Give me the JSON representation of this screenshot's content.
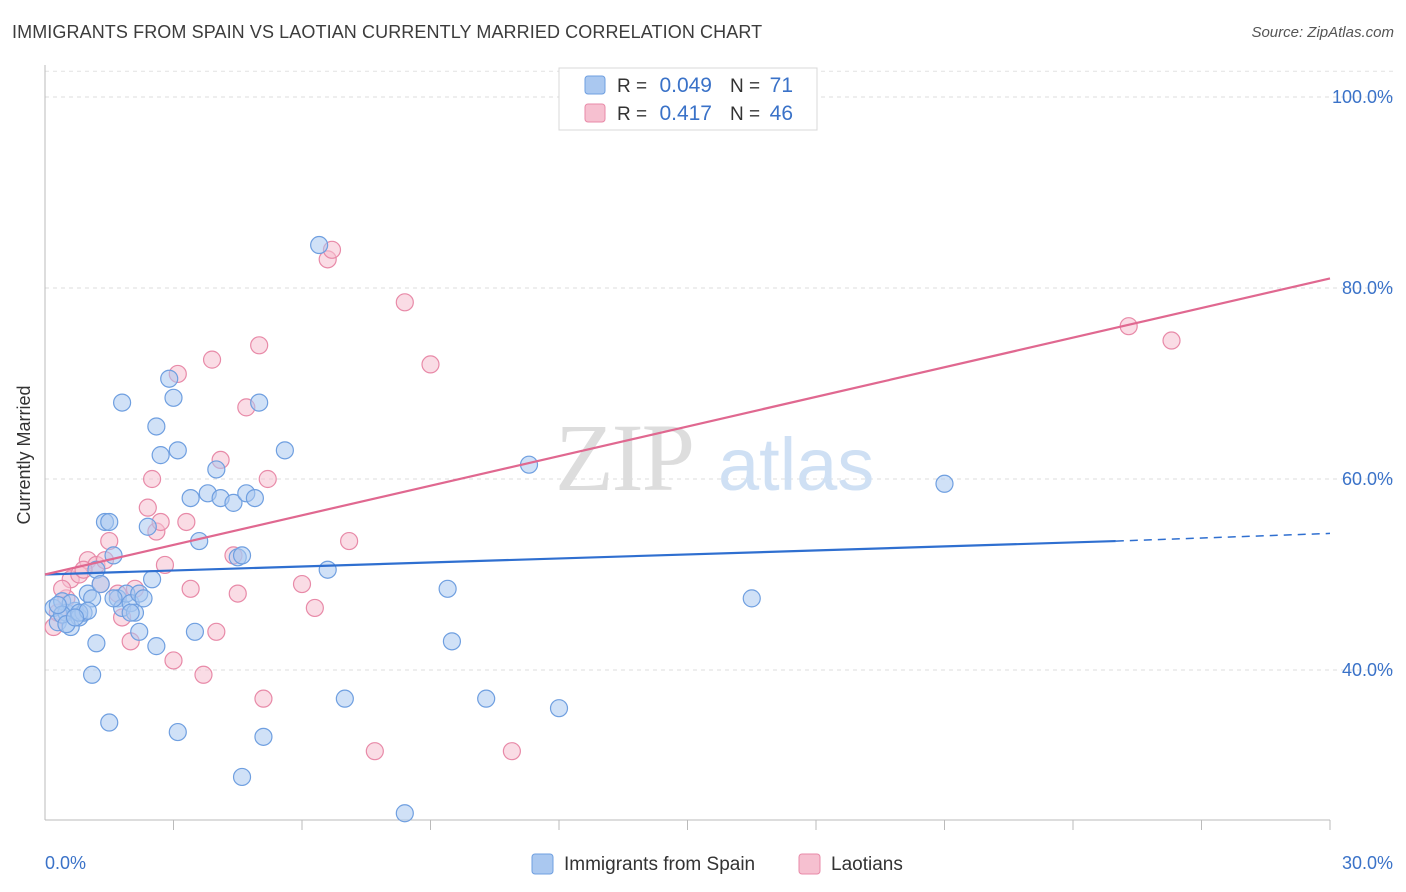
{
  "chart_data": {
    "type": "scatter",
    "title": "IMMIGRANTS FROM SPAIN VS LAOTIAN CURRENTLY MARRIED CORRELATION CHART",
    "source": "Source: ZipAtlas.com",
    "ylabel": "Currently Married",
    "xlabel": "",
    "x_ticks": [
      "0.0%",
      "30.0%"
    ],
    "y_ticks": [
      "100.0%",
      "80.0%",
      "60.0%",
      "40.0%"
    ],
    "y_tick_values": [
      100,
      80,
      60,
      40
    ],
    "xlim": [
      0,
      30
    ],
    "ylim": [
      22,
      102
    ],
    "watermark": {
      "zip": "ZIP",
      "atlas": "atlas"
    },
    "legend_stats": [
      {
        "r_label": "R =",
        "r_value": "0.049",
        "n_label": "N =",
        "n_value": "71"
      },
      {
        "r_label": "R =",
        "r_value": "0.417",
        "n_label": "N =",
        "n_value": "46"
      }
    ],
    "colors": {
      "blue_fill": "#aac8f0",
      "blue_stroke": "#6f9fe0",
      "blue_line": "#2f6fd0",
      "pink_fill": "#f6c0d0",
      "pink_stroke": "#e88aa8",
      "pink_line": "#e06890",
      "tick_label": "#3a72c8"
    },
    "series": [
      {
        "name": "Immigrants from Spain",
        "trend": {
          "x0": 0,
          "y0": 50.0,
          "x1": 25.0,
          "y1": 53.5,
          "dashed_to_x": 30,
          "dashed_to_y": 54.3
        },
        "points": [
          [
            0.2,
            46.5
          ],
          [
            0.3,
            45.0
          ],
          [
            0.4,
            47.2
          ],
          [
            0.5,
            46.0
          ],
          [
            0.6,
            44.5
          ],
          [
            0.7,
            46.2
          ],
          [
            0.8,
            45.5
          ],
          [
            0.9,
            46.0
          ],
          [
            1.0,
            48.0
          ],
          [
            1.1,
            47.5
          ],
          [
            1.2,
            50.5
          ],
          [
            1.3,
            49.0
          ],
          [
            1.4,
            55.5
          ],
          [
            1.5,
            55.5
          ],
          [
            1.6,
            52.0
          ],
          [
            1.7,
            47.5
          ],
          [
            1.8,
            46.5
          ],
          [
            1.9,
            48.0
          ],
          [
            2.0,
            47.0
          ],
          [
            2.1,
            46.0
          ],
          [
            2.2,
            48.0
          ],
          [
            2.3,
            47.5
          ],
          [
            2.4,
            55.0
          ],
          [
            2.5,
            49.5
          ],
          [
            2.6,
            65.5
          ],
          [
            2.7,
            62.5
          ],
          [
            2.9,
            70.5
          ],
          [
            3.0,
            68.5
          ],
          [
            3.1,
            63.0
          ],
          [
            3.4,
            58.0
          ],
          [
            3.5,
            44.0
          ],
          [
            3.6,
            53.5
          ],
          [
            3.8,
            58.5
          ],
          [
            4.0,
            61.0
          ],
          [
            4.1,
            58.0
          ],
          [
            4.4,
            57.5
          ],
          [
            4.5,
            51.8
          ],
          [
            4.6,
            52.0
          ],
          [
            4.7,
            58.5
          ],
          [
            4.9,
            58.0
          ],
          [
            5.0,
            68.0
          ],
          [
            5.1,
            33.0
          ],
          [
            5.6,
            63.0
          ],
          [
            6.4,
            84.5
          ],
          [
            6.6,
            50.5
          ],
          [
            7.0,
            37.0
          ],
          [
            8.4,
            25.0
          ],
          [
            9.4,
            48.5
          ],
          [
            9.5,
            43.0
          ],
          [
            10.3,
            37.0
          ],
          [
            11.3,
            61.5
          ],
          [
            12.0,
            36.0
          ],
          [
            16.5,
            47.5
          ],
          [
            21.0,
            59.5
          ],
          [
            1.8,
            68.0
          ],
          [
            2.6,
            42.5
          ],
          [
            1.1,
            39.5
          ],
          [
            1.5,
            34.5
          ],
          [
            3.1,
            33.5
          ],
          [
            4.6,
            28.8
          ],
          [
            0.6,
            47.0
          ],
          [
            0.8,
            46.0
          ],
          [
            1.0,
            46.2
          ],
          [
            0.4,
            45.8
          ],
          [
            0.5,
            44.8
          ],
          [
            0.7,
            45.5
          ],
          [
            1.2,
            42.8
          ],
          [
            2.2,
            44.0
          ],
          [
            2.0,
            46.0
          ],
          [
            1.6,
            47.5
          ],
          [
            0.3,
            46.8
          ]
        ]
      },
      {
        "name": "Laotians",
        "trend": {
          "x0": 0,
          "y0": 50.0,
          "x1": 30,
          "y1": 81.0
        },
        "points": [
          [
            0.2,
            44.5
          ],
          [
            0.3,
            46.0
          ],
          [
            0.5,
            47.5
          ],
          [
            0.6,
            49.5
          ],
          [
            0.8,
            50.0
          ],
          [
            1.0,
            51.5
          ],
          [
            1.2,
            51.0
          ],
          [
            1.3,
            49.0
          ],
          [
            1.5,
            53.5
          ],
          [
            1.7,
            48.0
          ],
          [
            1.8,
            45.5
          ],
          [
            2.0,
            43.0
          ],
          [
            2.1,
            48.5
          ],
          [
            2.4,
            57.0
          ],
          [
            2.5,
            60.0
          ],
          [
            2.6,
            54.5
          ],
          [
            2.7,
            55.5
          ],
          [
            2.8,
            51.0
          ],
          [
            3.0,
            41.0
          ],
          [
            3.1,
            71.0
          ],
          [
            3.3,
            55.5
          ],
          [
            3.4,
            48.5
          ],
          [
            3.7,
            39.5
          ],
          [
            3.9,
            72.5
          ],
          [
            4.0,
            44.0
          ],
          [
            4.1,
            62.0
          ],
          [
            4.4,
            52.0
          ],
          [
            4.5,
            48.0
          ],
          [
            4.7,
            67.5
          ],
          [
            5.0,
            74.0
          ],
          [
            5.1,
            37.0
          ],
          [
            5.2,
            60.0
          ],
          [
            6.0,
            49.0
          ],
          [
            6.3,
            46.5
          ],
          [
            6.6,
            83.0
          ],
          [
            6.7,
            84.0
          ],
          [
            7.1,
            53.5
          ],
          [
            7.7,
            31.5
          ],
          [
            8.4,
            78.5
          ],
          [
            9.0,
            72.0
          ],
          [
            10.9,
            31.5
          ],
          [
            25.3,
            76.0
          ],
          [
            26.3,
            74.5
          ],
          [
            1.4,
            51.5
          ],
          [
            0.9,
            50.5
          ],
          [
            0.4,
            48.5
          ]
        ]
      }
    ]
  }
}
